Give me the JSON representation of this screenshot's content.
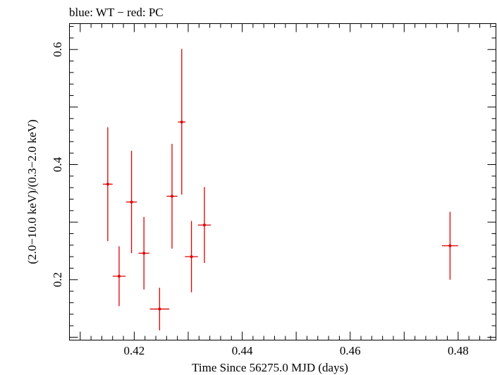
{
  "chart_data": {
    "type": "scatter",
    "title": "blue: WT − red: PC",
    "xlabel": "Time Since 56275.0 MJD (days)",
    "ylabel": "(2.0−10.0 keV)/(0.3−2.0 keV)",
    "xlim": [
      0.408,
      0.487
    ],
    "ylim": [
      0.095,
      0.645
    ],
    "x_ticks_major": [
      0.42,
      0.44,
      0.46,
      0.48
    ],
    "x_tick_labels": [
      "0.42",
      "0.44",
      "0.46",
      "0.48"
    ],
    "y_ticks_major": [
      0.2,
      0.4,
      0.6
    ],
    "y_tick_labels": [
      "0.2",
      "0.4",
      "0.6"
    ],
    "grid": false,
    "series": [
      {
        "color": "#e00000",
        "points": [
          {
            "x": 0.4151,
            "y": 0.366,
            "xerr": 0.0009,
            "ylo": 0.267,
            "yhi": 0.465
          },
          {
            "x": 0.4172,
            "y": 0.206,
            "xerr": 0.0012,
            "ylo": 0.154,
            "yhi": 0.258
          },
          {
            "x": 0.4195,
            "y": 0.335,
            "xerr": 0.001,
            "ylo": 0.246,
            "yhi": 0.424
          },
          {
            "x": 0.4218,
            "y": 0.246,
            "xerr": 0.001,
            "ylo": 0.183,
            "yhi": 0.309
          },
          {
            "x": 0.4247,
            "y": 0.149,
            "xerr": 0.0018,
            "ylo": 0.112,
            "yhi": 0.186
          },
          {
            "x": 0.427,
            "y": 0.345,
            "xerr": 0.001,
            "ylo": 0.254,
            "yhi": 0.436
          },
          {
            "x": 0.4288,
            "y": 0.474,
            "xerr": 0.0007,
            "ylo": 0.348,
            "yhi": 0.601
          },
          {
            "x": 0.4306,
            "y": 0.24,
            "xerr": 0.0012,
            "ylo": 0.178,
            "yhi": 0.302
          },
          {
            "x": 0.433,
            "y": 0.295,
            "xerr": 0.0012,
            "ylo": 0.229,
            "yhi": 0.361
          },
          {
            "x": 0.4785,
            "y": 0.259,
            "xerr": 0.0015,
            "ylo": 0.2,
            "yhi": 0.318
          }
        ]
      }
    ]
  }
}
